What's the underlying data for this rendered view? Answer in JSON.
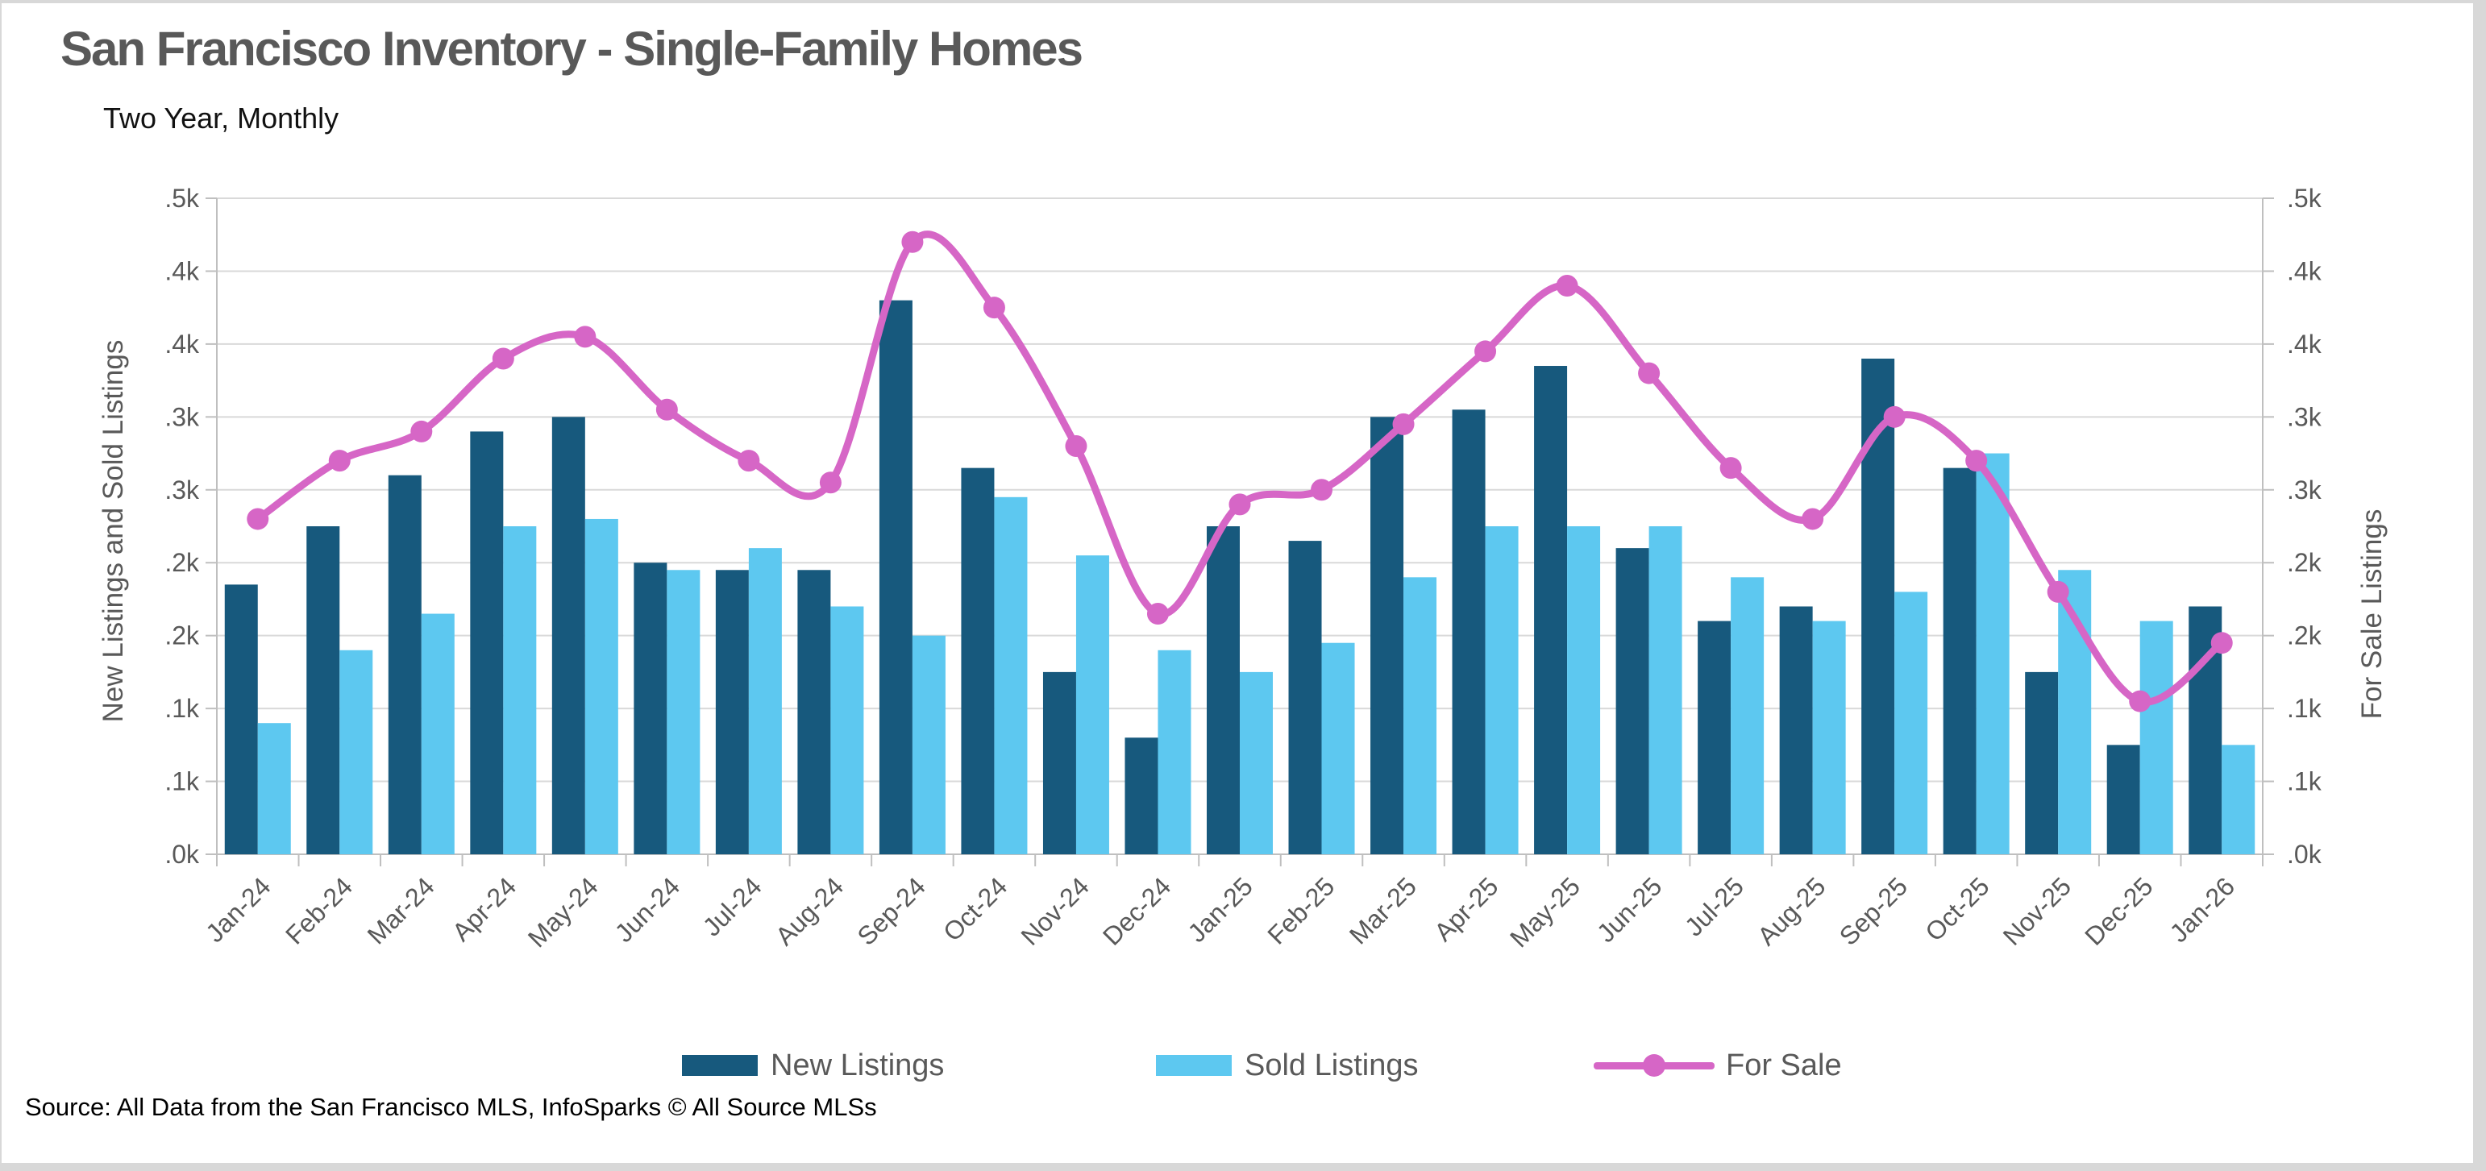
{
  "header": {
    "title": "San Francisco Inventory - Single-Family Homes",
    "subtitle": "Two Year, Monthly"
  },
  "footer": {
    "source": "Source: All Data from the San Francisco MLS, InfoSparks © All Source MLSs"
  },
  "legend": {
    "items": [
      {
        "label": "New Listings",
        "swatch": "bar"
      },
      {
        "label": "Sold Listings",
        "swatch": "bar"
      },
      {
        "label": "For Sale",
        "swatch": "line-marker"
      }
    ]
  },
  "colors": {
    "new_listings": "#17597D",
    "sold_listings": "#5DC8F0",
    "for_sale": "#D666C6",
    "gridline": "#D9D9D9",
    "axis_line": "#BFBFBF",
    "label_text": "#595959",
    "frame": "#D8D8D8"
  },
  "chart_data": {
    "type": "bar+line",
    "title": "San Francisco Inventory - Single-Family Homes",
    "subtitle": "Two Year, Monthly",
    "categories": [
      "Jan-24",
      "Feb-24",
      "Mar-24",
      "Apr-24",
      "May-24",
      "Jun-24",
      "Jul-24",
      "Aug-24",
      "Sep-24",
      "Oct-24",
      "Nov-24",
      "Dec-24",
      "Jan-25",
      "Feb-25",
      "Mar-25",
      "Apr-25",
      "May-25",
      "Jun-25",
      "Jul-25",
      "Aug-25",
      "Sep-25",
      "Oct-25",
      "Nov-25",
      "Dec-25",
      "Jan-26"
    ],
    "series": [
      {
        "name": "New Listings",
        "type": "bar",
        "axis": "left",
        "color": "#17597D",
        "values": [
          185,
          225,
          260,
          290,
          300,
          200,
          195,
          195,
          380,
          265,
          125,
          80,
          225,
          215,
          300,
          305,
          335,
          210,
          160,
          170,
          340,
          265,
          125,
          75,
          170
        ]
      },
      {
        "name": "Sold Listings",
        "type": "bar",
        "axis": "left",
        "color": "#5DC8F0",
        "values": [
          90,
          140,
          165,
          225,
          230,
          195,
          210,
          170,
          150,
          245,
          205,
          140,
          125,
          145,
          190,
          225,
          225,
          225,
          190,
          160,
          180,
          275,
          195,
          160,
          75
        ]
      },
      {
        "name": "For Sale",
        "type": "line",
        "axis": "right",
        "color": "#D666C6",
        "values": [
          230,
          270,
          290,
          340,
          355,
          305,
          270,
          255,
          420,
          375,
          280,
          165,
          240,
          250,
          295,
          345,
          390,
          330,
          265,
          230,
          300,
          270,
          180,
          105,
          145
        ]
      }
    ],
    "ylabel_left": "New Listings and Sold Listings",
    "ylabel_right": "For Sale Listings",
    "ylim": [
      0,
      450
    ],
    "ytick_values": [
      0,
      50,
      100,
      150,
      200,
      250,
      300,
      350,
      400,
      450
    ],
    "ytick_labels": [
      ".0k",
      ".1k",
      ".1k",
      ".2k",
      ".2k",
      ".3k",
      ".3k",
      ".4k",
      ".4k",
      ".5k"
    ],
    "grid": "horizontal",
    "legend_position": "bottom",
    "x_label_rotation": -45
  }
}
